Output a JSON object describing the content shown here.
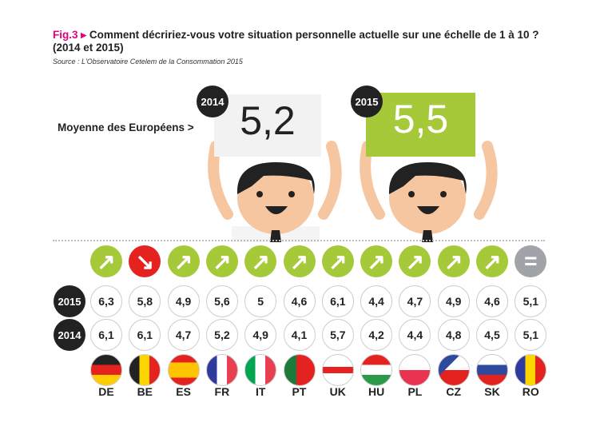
{
  "header": {
    "fig": "Fig.3",
    "arrow": "▸",
    "title": "Comment décririez-vous votre situation personnelle actuelle sur une échelle de 1 à 10 ? (2014 et 2015)",
    "source": "Source : L'Observatoire Cetelem de la Consommation 2015"
  },
  "average": {
    "label": "Moyenne des Européens >",
    "y2014_label": "2014",
    "y2014": "5,2",
    "y2015_label": "2015",
    "y2015": "5,5"
  },
  "colors": {
    "up": "#a6c93a",
    "down": "#e42320",
    "same": "#a0a4a8",
    "accent": "#e6007e"
  },
  "chart_data": {
    "type": "table",
    "title": "Comment décririez-vous votre situation personnelle actuelle sur une échelle de 1 à 10 ? (2014 et 2015)",
    "row_labels": [
      "2015",
      "2014"
    ],
    "categories": [
      "DE",
      "BE",
      "ES",
      "FR",
      "IT",
      "PT",
      "UK",
      "HU",
      "PL",
      "CZ",
      "SK",
      "RO"
    ],
    "series": [
      {
        "name": "2015",
        "values": [
          "6,3",
          "5,8",
          "4,9",
          "5,6",
          "5",
          "4,6",
          "6,1",
          "4,4",
          "4,7",
          "4,9",
          "4,6",
          "5,1"
        ]
      },
      {
        "name": "2014",
        "values": [
          "6,1",
          "6,1",
          "4,7",
          "5,2",
          "4,9",
          "4,1",
          "5,7",
          "4,2",
          "4,4",
          "4,8",
          "4,5",
          "5,1"
        ]
      }
    ],
    "trend": [
      "up",
      "down",
      "up",
      "up",
      "up",
      "up",
      "up",
      "up",
      "up",
      "up",
      "up",
      "same"
    ]
  }
}
